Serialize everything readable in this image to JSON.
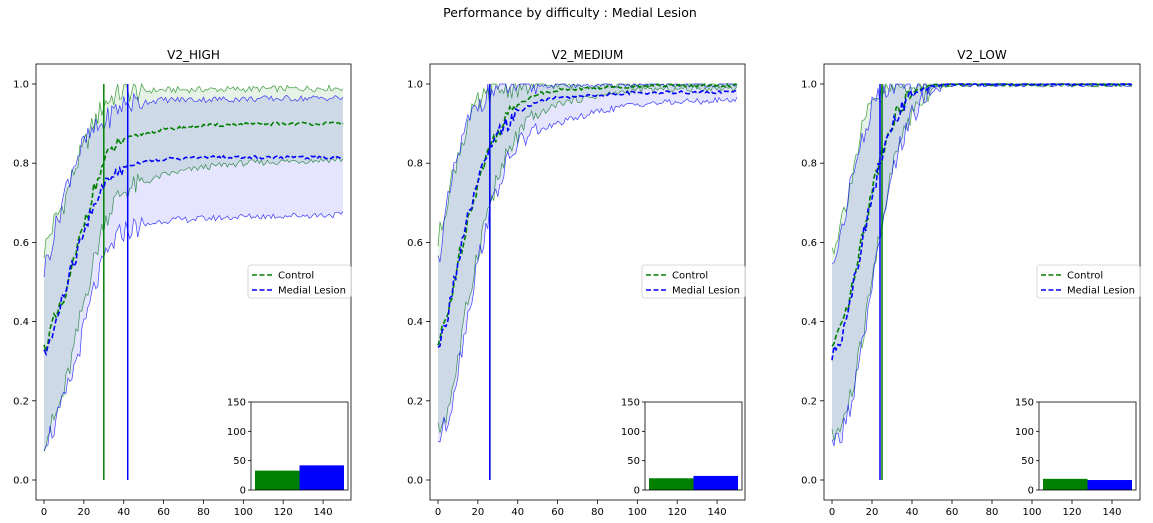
{
  "suptitle": "Performance by difficulty : Medial Lesion",
  "colors": {
    "control": "#008000",
    "lesion": "#0000ff",
    "control_fill": "#008000",
    "lesion_fill": "#0000ff"
  },
  "chart_data": [
    {
      "type": "line",
      "title": "V2_HIGH",
      "xlim": [
        0,
        150
      ],
      "ylim": [
        0,
        1.0
      ],
      "xticks": [
        0,
        20,
        40,
        60,
        80,
        100,
        120,
        140
      ],
      "yticks": [
        0.0,
        0.2,
        0.4,
        0.6,
        0.8,
        1.0
      ],
      "legend": {
        "placement": "center-right",
        "entries": [
          "Control",
          "Medial Lesion"
        ]
      },
      "series": [
        {
          "name": "Control",
          "color": "#008000",
          "mean": [
            [
              0,
              0.33
            ],
            [
              5,
              0.4
            ],
            [
              10,
              0.45
            ],
            [
              15,
              0.55
            ],
            [
              20,
              0.65
            ],
            [
              25,
              0.73
            ],
            [
              30,
              0.8
            ],
            [
              35,
              0.84
            ],
            [
              40,
              0.86
            ],
            [
              50,
              0.875
            ],
            [
              60,
              0.885
            ],
            [
              80,
              0.895
            ],
            [
              100,
              0.898
            ],
            [
              120,
              0.9
            ],
            [
              150,
              0.9
            ]
          ],
          "upper": [
            [
              0,
              0.58
            ],
            [
              5,
              0.65
            ],
            [
              10,
              0.7
            ],
            [
              15,
              0.78
            ],
            [
              20,
              0.84
            ],
            [
              25,
              0.9
            ],
            [
              30,
              0.95
            ],
            [
              35,
              0.97
            ],
            [
              40,
              0.98
            ],
            [
              60,
              0.985
            ],
            [
              150,
              0.99
            ]
          ],
          "lower": [
            [
              0,
              0.1
            ],
            [
              5,
              0.15
            ],
            [
              10,
              0.22
            ],
            [
              15,
              0.33
            ],
            [
              20,
              0.45
            ],
            [
              25,
              0.55
            ],
            [
              30,
              0.65
            ],
            [
              35,
              0.7
            ],
            [
              40,
              0.73
            ],
            [
              60,
              0.77
            ],
            [
              80,
              0.79
            ],
            [
              100,
              0.8
            ],
            [
              150,
              0.81
            ]
          ],
          "vline": 30
        },
        {
          "name": "Medial Lesion",
          "color": "#0000ff",
          "mean": [
            [
              0,
              0.31
            ],
            [
              5,
              0.38
            ],
            [
              10,
              0.47
            ],
            [
              15,
              0.55
            ],
            [
              20,
              0.62
            ],
            [
              25,
              0.7
            ],
            [
              30,
              0.74
            ],
            [
              35,
              0.77
            ],
            [
              40,
              0.79
            ],
            [
              50,
              0.805
            ],
            [
              60,
              0.81
            ],
            [
              80,
              0.815
            ],
            [
              100,
              0.815
            ],
            [
              150,
              0.815
            ]
          ],
          "upper": [
            [
              0,
              0.53
            ],
            [
              5,
              0.62
            ],
            [
              10,
              0.72
            ],
            [
              15,
              0.8
            ],
            [
              20,
              0.85
            ],
            [
              25,
              0.88
            ],
            [
              30,
              0.9
            ],
            [
              35,
              0.93
            ],
            [
              40,
              0.95
            ],
            [
              60,
              0.96
            ],
            [
              150,
              0.965
            ]
          ],
          "lower": [
            [
              0,
              0.1
            ],
            [
              5,
              0.13
            ],
            [
              10,
              0.2
            ],
            [
              15,
              0.28
            ],
            [
              20,
              0.38
            ],
            [
              25,
              0.48
            ],
            [
              30,
              0.55
            ],
            [
              35,
              0.6
            ],
            [
              40,
              0.63
            ],
            [
              60,
              0.655
            ],
            [
              100,
              0.665
            ],
            [
              150,
              0.67
            ]
          ],
          "vline": 42
        }
      ],
      "inset": {
        "type": "bar",
        "ylim": [
          0,
          150
        ],
        "yticks": [
          0,
          50,
          100,
          150
        ],
        "values": [
          33,
          42
        ],
        "colors": [
          "#008000",
          "#0000ff"
        ]
      }
    },
    {
      "type": "line",
      "title": "V2_MEDIUM",
      "xlim": [
        0,
        150
      ],
      "ylim": [
        0,
        1.0
      ],
      "xticks": [
        0,
        20,
        40,
        60,
        80,
        100,
        120,
        140
      ],
      "yticks": [
        0.0,
        0.2,
        0.4,
        0.6,
        0.8,
        1.0
      ],
      "legend": {
        "placement": "center-right",
        "entries": [
          "Control",
          "Medial Lesion"
        ]
      },
      "series": [
        {
          "name": "Control",
          "color": "#008000",
          "mean": [
            [
              0,
              0.34
            ],
            [
              5,
              0.42
            ],
            [
              10,
              0.55
            ],
            [
              15,
              0.66
            ],
            [
              20,
              0.75
            ],
            [
              25,
              0.83
            ],
            [
              30,
              0.88
            ],
            [
              35,
              0.92
            ],
            [
              40,
              0.95
            ],
            [
              50,
              0.975
            ],
            [
              60,
              0.985
            ],
            [
              80,
              0.99
            ],
            [
              100,
              0.995
            ],
            [
              150,
              0.997
            ]
          ],
          "upper": [
            [
              0,
              0.6
            ],
            [
              5,
              0.72
            ],
            [
              10,
              0.82
            ],
            [
              15,
              0.9
            ],
            [
              20,
              0.95
            ],
            [
              25,
              0.97
            ],
            [
              30,
              0.985
            ],
            [
              40,
              0.995
            ],
            [
              150,
              1.0
            ]
          ],
          "lower": [
            [
              0,
              0.12
            ],
            [
              5,
              0.18
            ],
            [
              10,
              0.3
            ],
            [
              15,
              0.45
            ],
            [
              20,
              0.58
            ],
            [
              25,
              0.68
            ],
            [
              30,
              0.76
            ],
            [
              35,
              0.82
            ],
            [
              40,
              0.87
            ],
            [
              50,
              0.92
            ],
            [
              60,
              0.95
            ],
            [
              80,
              0.97
            ],
            [
              100,
              0.985
            ],
            [
              150,
              0.99
            ]
          ],
          "vline": 26
        },
        {
          "name": "Medial Lesion",
          "color": "#0000ff",
          "mean": [
            [
              0,
              0.32
            ],
            [
              5,
              0.42
            ],
            [
              10,
              0.55
            ],
            [
              15,
              0.66
            ],
            [
              20,
              0.75
            ],
            [
              25,
              0.82
            ],
            [
              30,
              0.87
            ],
            [
              35,
              0.9
            ],
            [
              40,
              0.93
            ],
            [
              50,
              0.955
            ],
            [
              60,
              0.965
            ],
            [
              80,
              0.972
            ],
            [
              100,
              0.978
            ],
            [
              150,
              0.98
            ]
          ],
          "upper": [
            [
              0,
              0.55
            ],
            [
              5,
              0.7
            ],
            [
              10,
              0.82
            ],
            [
              15,
              0.9
            ],
            [
              20,
              0.95
            ],
            [
              25,
              0.975
            ],
            [
              30,
              0.99
            ],
            [
              40,
              0.997
            ],
            [
              150,
              1.0
            ]
          ],
          "lower": [
            [
              0,
              0.1
            ],
            [
              5,
              0.15
            ],
            [
              10,
              0.28
            ],
            [
              15,
              0.42
            ],
            [
              20,
              0.55
            ],
            [
              25,
              0.66
            ],
            [
              30,
              0.74
            ],
            [
              35,
              0.8
            ],
            [
              40,
              0.85
            ],
            [
              50,
              0.88
            ],
            [
              60,
              0.9
            ],
            [
              80,
              0.93
            ],
            [
              100,
              0.95
            ],
            [
              150,
              0.96
            ]
          ],
          "vline": 26
        }
      ],
      "inset": {
        "type": "bar",
        "ylim": [
          0,
          150
        ],
        "yticks": [
          0,
          50,
          100,
          150
        ],
        "values": [
          20,
          24
        ],
        "colors": [
          "#008000",
          "#0000ff"
        ]
      }
    },
    {
      "type": "line",
      "title": "V2_LOW",
      "xlim": [
        0,
        150
      ],
      "ylim": [
        0,
        1.0
      ],
      "xticks": [
        0,
        20,
        40,
        60,
        80,
        100,
        120,
        140
      ],
      "yticks": [
        0.0,
        0.2,
        0.4,
        0.6,
        0.8,
        1.0
      ],
      "legend": {
        "placement": "center-right",
        "entries": [
          "Control",
          "Medial Lesion"
        ]
      },
      "series": [
        {
          "name": "Control",
          "color": "#008000",
          "mean": [
            [
              0,
              0.33
            ],
            [
              5,
              0.38
            ],
            [
              10,
              0.48
            ],
            [
              15,
              0.6
            ],
            [
              20,
              0.73
            ],
            [
              25,
              0.83
            ],
            [
              30,
              0.9
            ],
            [
              35,
              0.95
            ],
            [
              40,
              0.975
            ],
            [
              45,
              0.99
            ],
            [
              50,
              0.995
            ],
            [
              60,
              1.0
            ],
            [
              150,
              1.0
            ]
          ],
          "upper": [
            [
              0,
              0.58
            ],
            [
              5,
              0.66
            ],
            [
              10,
              0.77
            ],
            [
              15,
              0.88
            ],
            [
              20,
              0.95
            ],
            [
              25,
              0.98
            ],
            [
              30,
              0.99
            ],
            [
              40,
              1.0
            ],
            [
              150,
              1.0
            ]
          ],
          "lower": [
            [
              0,
              0.1
            ],
            [
              5,
              0.14
            ],
            [
              10,
              0.22
            ],
            [
              15,
              0.35
            ],
            [
              20,
              0.5
            ],
            [
              25,
              0.66
            ],
            [
              30,
              0.78
            ],
            [
              35,
              0.87
            ],
            [
              40,
              0.93
            ],
            [
              45,
              0.97
            ],
            [
              50,
              0.99
            ],
            [
              60,
              1.0
            ],
            [
              150,
              1.0
            ]
          ],
          "vline": 25
        },
        {
          "name": "Medial Lesion",
          "color": "#0000ff",
          "mean": [
            [
              0,
              0.31
            ],
            [
              5,
              0.37
            ],
            [
              10,
              0.48
            ],
            [
              15,
              0.6
            ],
            [
              20,
              0.72
            ],
            [
              25,
              0.82
            ],
            [
              30,
              0.89
            ],
            [
              35,
              0.94
            ],
            [
              40,
              0.97
            ],
            [
              45,
              0.985
            ],
            [
              50,
              0.995
            ],
            [
              60,
              1.0
            ],
            [
              150,
              1.0
            ]
          ],
          "upper": [
            [
              0,
              0.53
            ],
            [
              5,
              0.64
            ],
            [
              10,
              0.76
            ],
            [
              15,
              0.86
            ],
            [
              20,
              0.94
            ],
            [
              25,
              0.975
            ],
            [
              30,
              0.99
            ],
            [
              40,
              1.0
            ],
            [
              150,
              1.0
            ]
          ],
          "lower": [
            [
              0,
              0.08
            ],
            [
              5,
              0.12
            ],
            [
              10,
              0.2
            ],
            [
              15,
              0.33
            ],
            [
              20,
              0.48
            ],
            [
              25,
              0.63
            ],
            [
              30,
              0.76
            ],
            [
              35,
              0.86
            ],
            [
              40,
              0.92
            ],
            [
              45,
              0.96
            ],
            [
              50,
              0.98
            ],
            [
              60,
              1.0
            ],
            [
              150,
              1.0
            ]
          ],
          "vline": 24
        }
      ],
      "inset": {
        "type": "bar",
        "ylim": [
          0,
          150
        ],
        "yticks": [
          0,
          50,
          100,
          150
        ],
        "values": [
          19,
          17
        ],
        "colors": [
          "#008000",
          "#0000ff"
        ]
      }
    }
  ]
}
